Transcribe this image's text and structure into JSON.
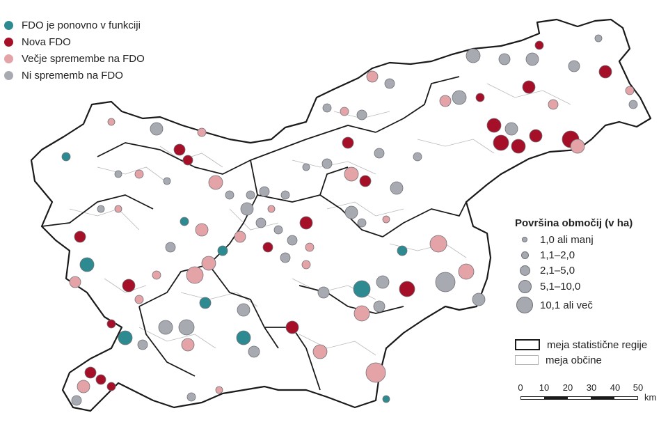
{
  "legend_categories": [
    {
      "label": "FDO je ponovno v funkciji",
      "color": "#2e8a91"
    },
    {
      "label": "Nova FDO",
      "color": "#a50f28"
    },
    {
      "label": "Večje spremembe na FDO",
      "color": "#e4a4a7"
    },
    {
      "label": "Ni sprememb na FDO",
      "color": "#a8aab2"
    }
  ],
  "size_legend": {
    "title": "Površina območij (v ha)",
    "items": [
      "1,0 ali manj",
      "1,1–2,0",
      "2,1–5,0",
      "5,1–10,0",
      "10,1 ali več"
    ]
  },
  "boundary_legend": {
    "region": "meja statistične regije",
    "municipality": "meja občine"
  },
  "scale": {
    "ticks": [
      "0",
      "10",
      "20",
      "30",
      "40",
      "50"
    ],
    "unit": "km"
  },
  "colors": {
    "teal": "#2e8a91",
    "red": "#a50f28",
    "pink": "#e4a4a7",
    "gray": "#a8aab2",
    "outline": "#1a1a1a",
    "municipality_line": "#b8b8b8"
  }
}
